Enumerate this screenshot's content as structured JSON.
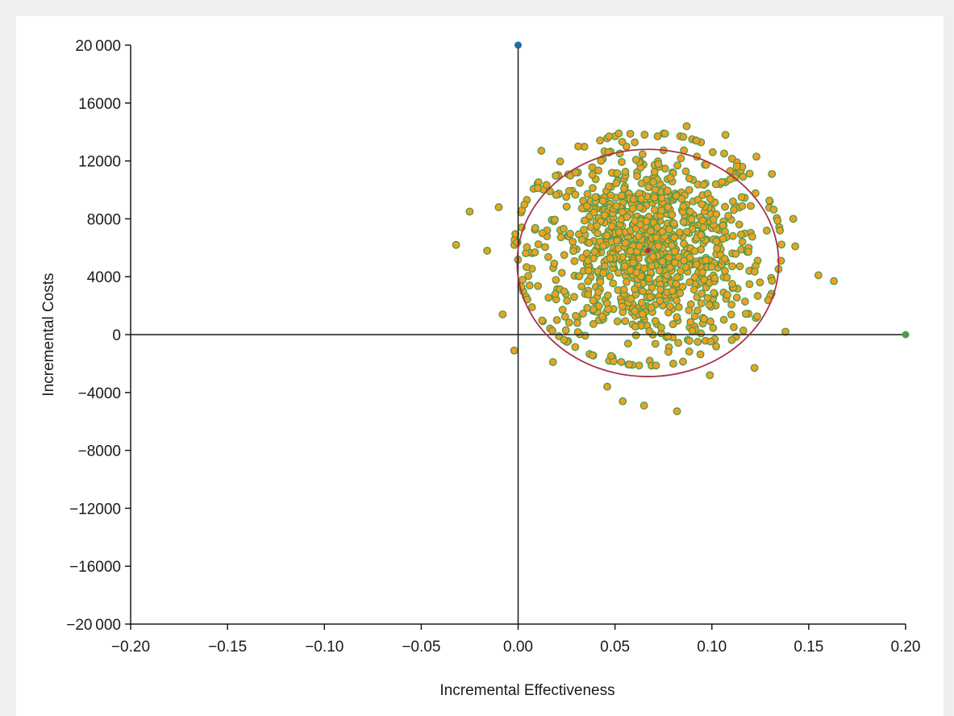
{
  "chart_data": {
    "type": "scatter",
    "title": "",
    "xlabel": "Incremental Effectiveness",
    "ylabel": "Incremental Costs",
    "xlim": [
      -0.2,
      0.2
    ],
    "ylim": [
      -20000,
      20000
    ],
    "x_ticks": [
      -0.2,
      -0.15,
      -0.1,
      -0.05,
      0.0,
      0.05,
      0.1,
      0.15,
      0.2
    ],
    "x_tick_labels": [
      "−0.20",
      "−0.15",
      "−0.10",
      "−0.05",
      "0.00",
      "0.05",
      "0.10",
      "0.15",
      "0.20"
    ],
    "y_ticks": [
      20000,
      16000,
      12000,
      8000,
      4000,
      0,
      -4000,
      -8000,
      -12000,
      -16000,
      -20000
    ],
    "y_tick_labels": [
      "20 000",
      "16000",
      "12000",
      "8000",
      "4000",
      "0",
      "−4000",
      "−8000",
      "−12000",
      "−16000",
      "−20 000"
    ],
    "grid": false,
    "legend": "none",
    "colors": {
      "point_fill": "#f0a020",
      "point_stroke": "#4e9a4e",
      "ellipse": "#a8324a",
      "mean_point": "#a8324a",
      "top_marker": "#1f6fa3",
      "right_marker": "#4e9a4e",
      "axes": "#1a1a1a"
    },
    "cloud": {
      "mean_x": 0.067,
      "mean_y": 5900,
      "sd_x": 0.03,
      "sd_y": 3500,
      "n": 1000
    },
    "outliers": [
      {
        "x": -0.032,
        "y": 6200
      },
      {
        "x": -0.025,
        "y": 8500
      },
      {
        "x": -0.016,
        "y": 5800
      },
      {
        "x": -0.01,
        "y": 8800
      },
      {
        "x": -0.008,
        "y": 1400
      },
      {
        "x": -0.002,
        "y": -1100
      },
      {
        "x": 0.018,
        "y": -1900
      },
      {
        "x": 0.054,
        "y": -4600
      },
      {
        "x": 0.065,
        "y": -4900
      },
      {
        "x": 0.082,
        "y": -5300
      },
      {
        "x": 0.046,
        "y": -3600
      },
      {
        "x": 0.099,
        "y": -2800
      },
      {
        "x": 0.122,
        "y": -2300
      },
      {
        "x": 0.138,
        "y": 200
      },
      {
        "x": 0.155,
        "y": 4100
      },
      {
        "x": 0.163,
        "y": 3700
      },
      {
        "x": 0.143,
        "y": 6100
      },
      {
        "x": 0.142,
        "y": 8000
      },
      {
        "x": 0.131,
        "y": 11100
      },
      {
        "x": 0.123,
        "y": 12300
      },
      {
        "x": 0.107,
        "y": 13800
      },
      {
        "x": 0.087,
        "y": 14400
      },
      {
        "x": 0.072,
        "y": 13700
      },
      {
        "x": 0.052,
        "y": 13900
      },
      {
        "x": 0.047,
        "y": 13700
      },
      {
        "x": 0.031,
        "y": 13000
      },
      {
        "x": 0.012,
        "y": 12700
      }
    ],
    "ellipse": {
      "cx": 0.067,
      "cy": 4950,
      "rx": 0.0675,
      "ry": 7850
    },
    "mean_point": {
      "x": 0.067,
      "y": 5800
    },
    "markers": [
      {
        "name": "top-marker",
        "x": 0.0,
        "y": 20000
      },
      {
        "name": "right-marker",
        "x": 0.2,
        "y": 0
      }
    ]
  }
}
